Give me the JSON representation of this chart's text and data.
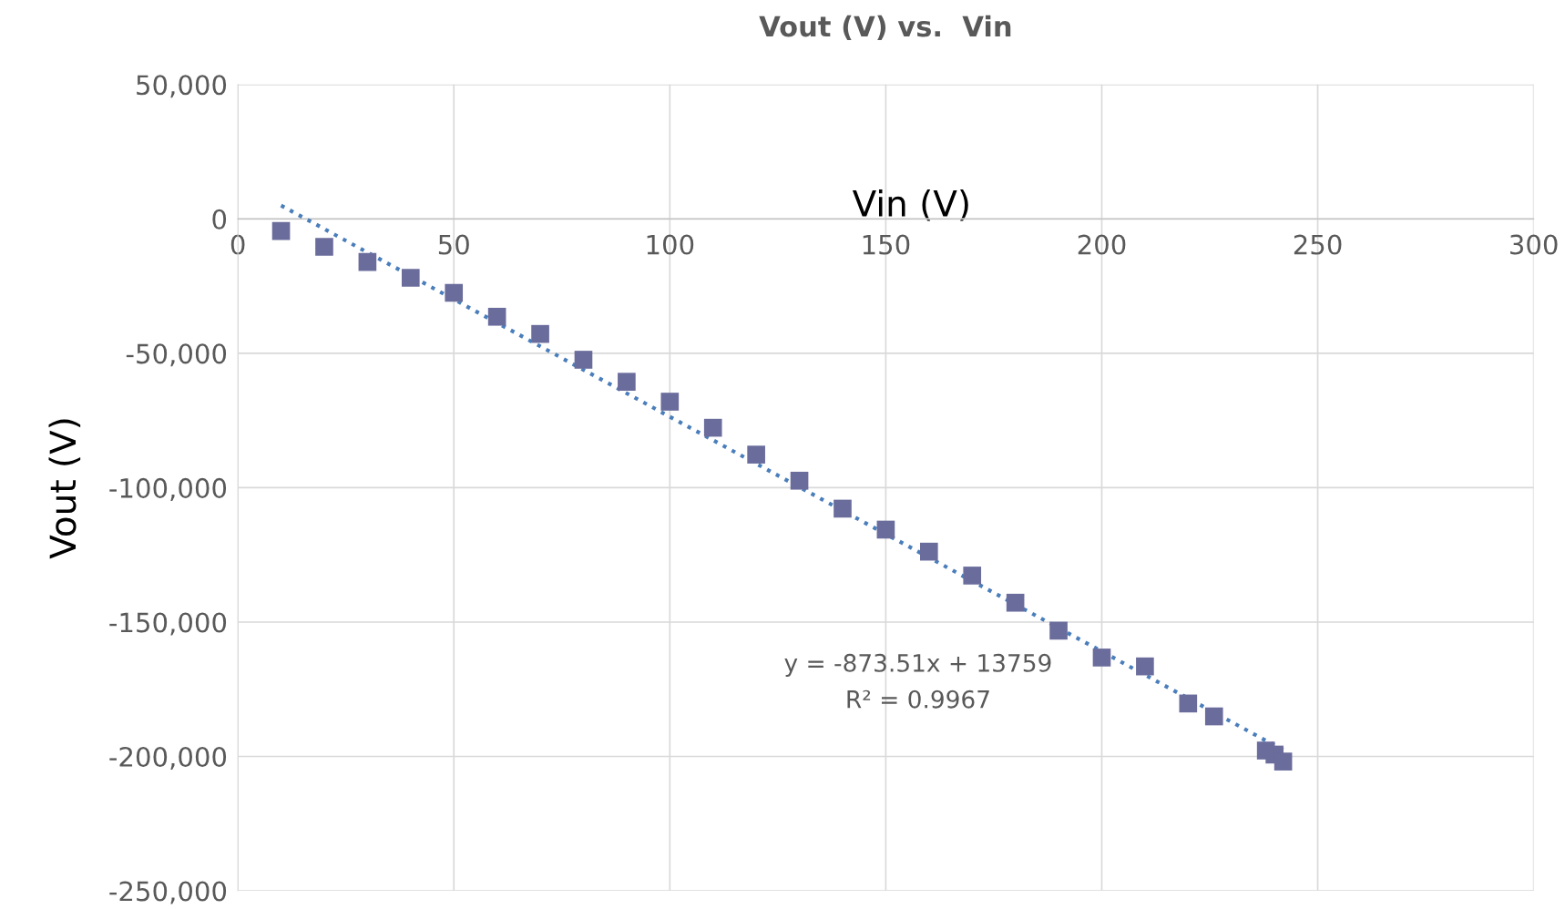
{
  "chart_data": {
    "type": "scatter",
    "title": "Vout (V) vs.  Vin",
    "xlabel": "Vin (V)",
    "ylabel": "Vout (V)",
    "series": [
      {
        "color": "#6a6c9c",
        "marker": "square",
        "x": [
          10,
          20,
          30,
          40,
          50,
          60,
          70,
          80,
          90,
          100,
          110,
          120,
          130,
          140,
          150,
          160,
          170,
          180,
          190,
          200,
          210,
          220,
          226,
          238,
          240,
          242
        ],
        "values": [
          -4500,
          -10400,
          -16000,
          -21900,
          -27500,
          -36400,
          -42800,
          -52400,
          -60600,
          -68000,
          -77700,
          -87700,
          -97400,
          -107800,
          -115600,
          -123800,
          -132700,
          -142800,
          -153200,
          -163200,
          -166500,
          -180300,
          -185100,
          -197800,
          -199300,
          -201900
        ]
      },
      {
        "type": "line",
        "color": "#4a7ebb",
        "line_style": "dotted",
        "x": [
          10,
          242
        ],
        "values": [
          5000,
          -197600
        ]
      }
    ],
    "xlim": [
      0,
      300
    ],
    "xticks": [
      0,
      50,
      100,
      150,
      200,
      250,
      300
    ],
    "ylim": [
      -250000,
      50000
    ],
    "yticks": [
      {
        "value": 50000,
        "label": "50,000"
      },
      0,
      {
        "value": -50000,
        "label": "-50,000"
      },
      {
        "value": -100000,
        "label": "-100,000"
      },
      {
        "value": -150000,
        "label": "-150,000"
      },
      {
        "value": -200000,
        "label": "-200,000"
      },
      {
        "value": -250000,
        "label": "-250,000"
      }
    ],
    "grid": true,
    "annotations": [
      "y = -873.51x + 13759",
      "R² = 0.9967"
    ]
  }
}
